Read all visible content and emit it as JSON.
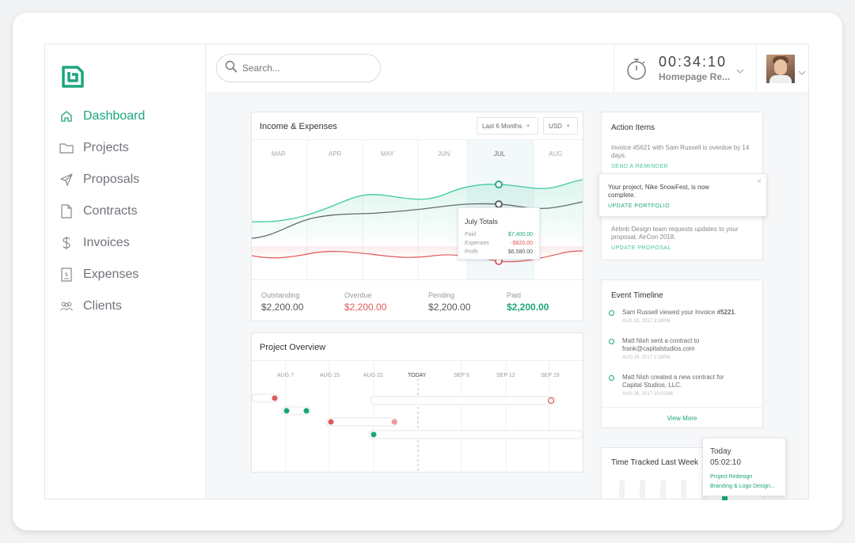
{
  "sidebar": {
    "items": [
      {
        "label": "Dashboard",
        "icon": "home-icon"
      },
      {
        "label": "Projects",
        "icon": "folder-icon"
      },
      {
        "label": "Proposals",
        "icon": "send-icon"
      },
      {
        "label": "Contracts",
        "icon": "document-icon"
      },
      {
        "label": "Invoices",
        "icon": "dollar-icon"
      },
      {
        "label": "Expenses",
        "icon": "receipt-icon"
      },
      {
        "label": "Clients",
        "icon": "users-icon"
      }
    ]
  },
  "header": {
    "search_placeholder": "Search...",
    "timer": "00:34:10",
    "timer_project": "Homepage Re..."
  },
  "income": {
    "title": "Income & Expenses",
    "range": "Last 6 Months",
    "currency": "USD",
    "months": [
      "MAR",
      "APR",
      "MAY",
      "JUN",
      "JUL",
      "AUG"
    ],
    "tooltip": {
      "title": "July Totals",
      "rows": [
        {
          "label": "Paid",
          "value": "$7,400.00"
        },
        {
          "label": "Expenses",
          "value": "-$820.00"
        },
        {
          "label": "Profit",
          "value": "$6,580.00"
        }
      ]
    },
    "summary": [
      {
        "label": "Outstanding",
        "value": "$2,200.00"
      },
      {
        "label": "Overdue",
        "value": "$2,200.00"
      },
      {
        "label": "Pending",
        "value": "$2,200.00"
      },
      {
        "label": "Paid",
        "value": "$2,200.00"
      }
    ]
  },
  "project": {
    "title": "Project Overview",
    "dates": [
      "AUG 7",
      "AUG 15",
      "AUG 22",
      "TODAY",
      "SEP 5",
      "SEP 12",
      "SEP 19"
    ]
  },
  "action": {
    "title": "Action Items",
    "item1_text": "Invoice #5621 with Sam Russell is overdue by 14 days.",
    "item1_link": "SEND A REMINDER",
    "notif_text": "Your project, Nike SnowFest, is now complete.",
    "notif_link": "UPDATE PORTFOLIO",
    "item3_text": "Airbnb Design team requests updates to your proposal, AirCon 2018.",
    "item3_link": "UPDATE PROPOSAL"
  },
  "events": {
    "title": "Event Timeline",
    "items": [
      {
        "pre": "Sam Russell viewed your Invoice ",
        "bold": "#5221",
        "post": ".",
        "date": "AUG 28, 2017 3:18PM"
      },
      {
        "pre": "Matt Nish sent a contract to frank@capitalstudios.com",
        "bold": "",
        "post": "",
        "date": "AUG 26, 2017 1:18PM"
      },
      {
        "pre": "Matt Nish created a new contract for Capital Studios, LLC.",
        "bold": "",
        "post": "",
        "date": "AUG 26, 2017 10:02AM"
      }
    ],
    "view_more": "View More"
  },
  "time": {
    "title": "Time Tracked Last Week",
    "popup": {
      "title": "Today",
      "value": "05:02:10",
      "line1": "Project Redesign",
      "line2": "Branding & Logo Design..."
    }
  },
  "colors": {
    "accent": "#1ba57c",
    "red": "#e05a5a",
    "grey_line": "#666a6e"
  }
}
